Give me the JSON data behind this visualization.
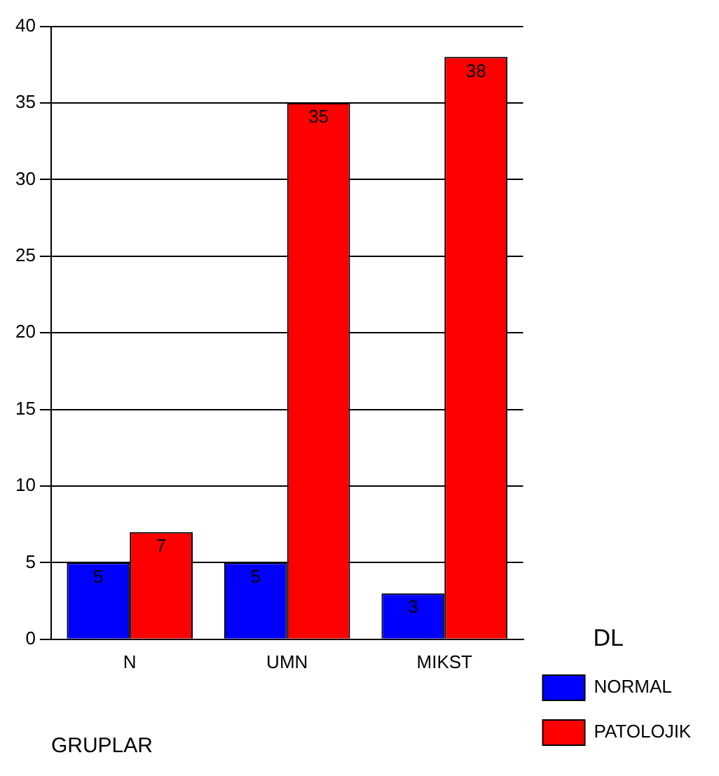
{
  "chart_data": {
    "type": "bar",
    "xlabel": "GRUPLAR",
    "legend_title": "DL",
    "categories": [
      "N",
      "UMN",
      "MIKST"
    ],
    "series": [
      {
        "name": "NORMAL",
        "color": "#0000ff",
        "values": [
          5,
          5,
          3
        ]
      },
      {
        "name": "PATOLOJIK",
        "color": "#ff0000",
        "values": [
          7,
          35,
          38
        ]
      }
    ],
    "ylim": [
      0,
      40
    ],
    "yticks": [
      0,
      5,
      10,
      15,
      20,
      25,
      30,
      35,
      40
    ],
    "grid": "y",
    "legend": "bottom right",
    "data_labels": true
  }
}
